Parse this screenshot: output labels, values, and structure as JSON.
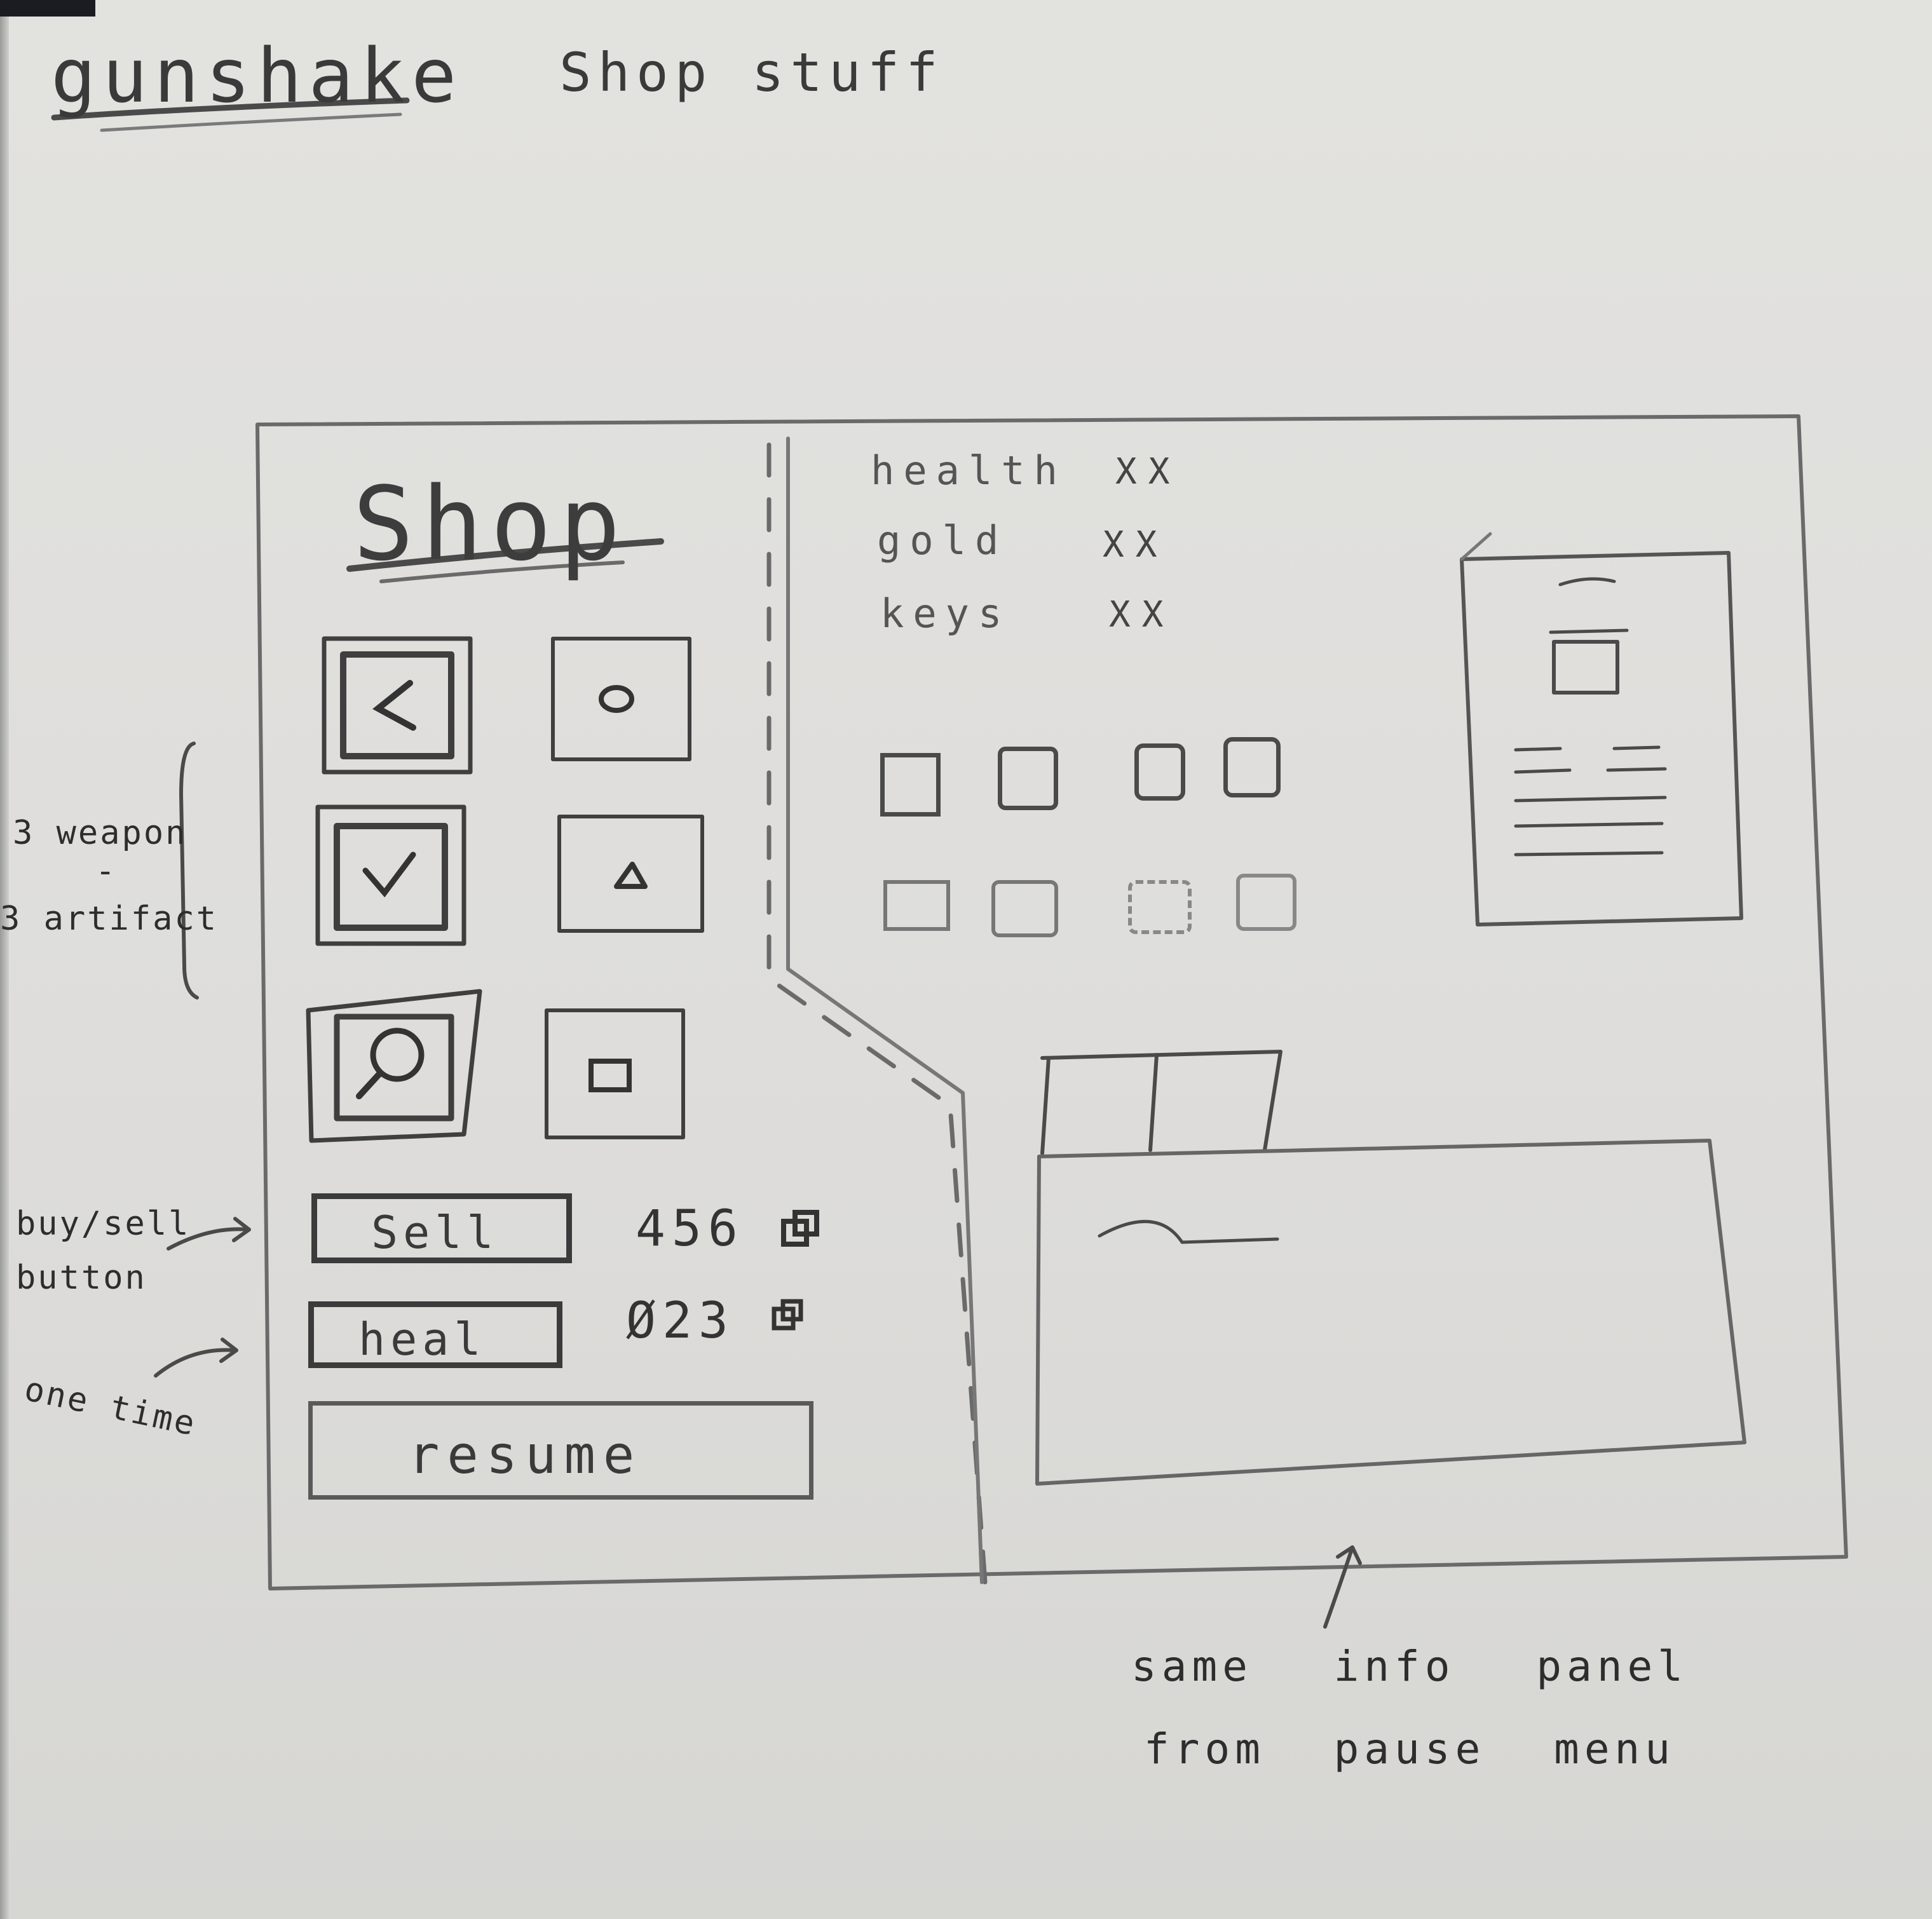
{
  "header": {
    "app_title": "gunshake",
    "subtitle": "Shop stuff"
  },
  "shop": {
    "title": "Shop",
    "slots": [
      {
        "icon": "chevron-left-icon"
      },
      {
        "icon": "circle-icon"
      },
      {
        "icon": "checkmark-icon"
      },
      {
        "icon": "triangle-icon"
      },
      {
        "icon": "magnifier-icon"
      },
      {
        "icon": "square-icon"
      }
    ],
    "buttons": {
      "sell_label": "Sell",
      "sell_value": "456",
      "heal_label": "heal",
      "heal_value": "Ø23",
      "resume_label": "resume"
    }
  },
  "stats": {
    "health_label": "health",
    "health_value": "XX",
    "gold_label": "gold",
    "gold_value": "XX",
    "keys_label": "keys",
    "keys_value": "XX"
  },
  "annotations": {
    "weapon_artifact_line1": "3 weapon",
    "weapon_artifact_line2": "-",
    "weapon_artifact_line3": "3 artifact",
    "buy_sell_line1": "buy/sell",
    "buy_sell_line2": "button",
    "one_time": "one time",
    "info_panel_line1": "same info panel",
    "info_panel_line2": "from pause menu"
  }
}
